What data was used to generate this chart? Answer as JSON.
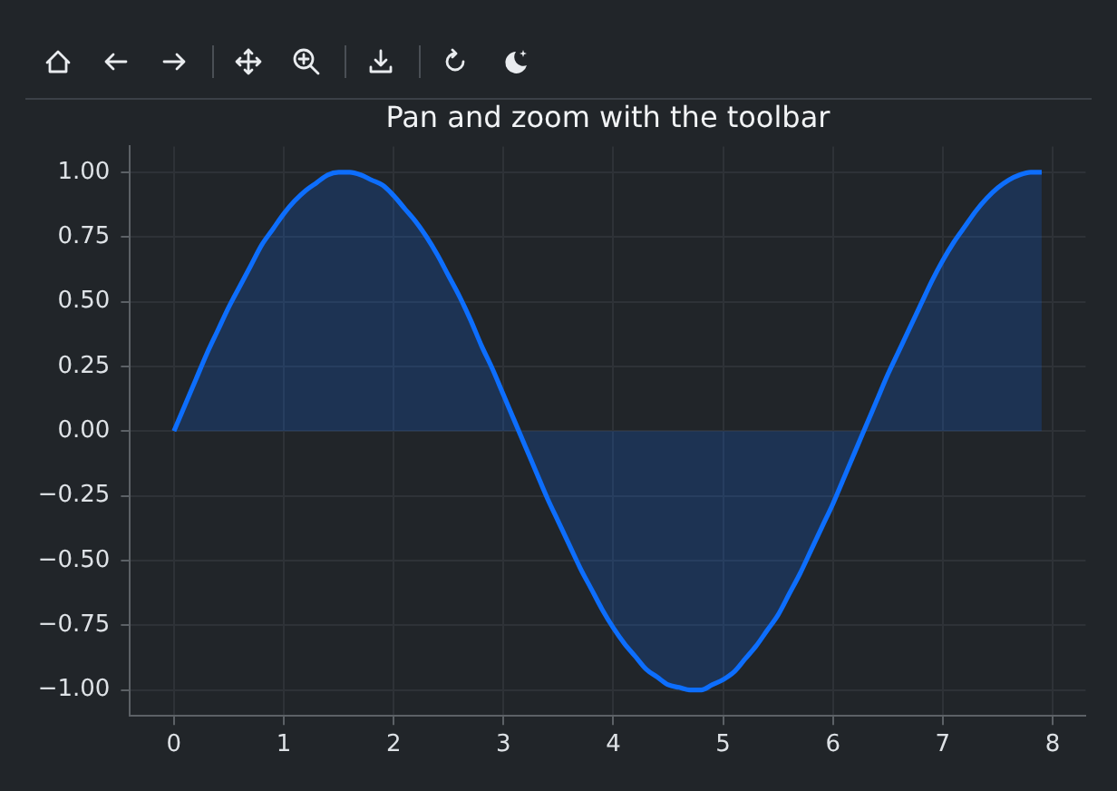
{
  "chart_data": {
    "type": "area",
    "title": "Pan and zoom with the toolbar",
    "color": "#0d6efd",
    "line_style": "solid",
    "grid": true,
    "x": [
      0,
      0.1,
      0.2,
      0.3,
      0.4,
      0.5,
      0.6,
      0.7,
      0.8,
      0.9,
      1,
      1.1,
      1.2,
      1.3,
      1.4,
      1.5,
      1.6,
      1.7,
      1.8,
      1.9,
      2,
      2.1,
      2.2,
      2.3,
      2.4,
      2.5,
      2.6,
      2.7,
      2.8,
      2.9,
      3,
      3.1,
      3.2,
      3.3,
      3.4,
      3.5,
      3.6,
      3.7,
      3.8,
      3.9,
      4,
      4.1,
      4.2,
      4.3,
      4.4,
      4.5,
      4.6,
      4.7,
      4.8,
      4.9,
      5,
      5.1,
      5.2,
      5.3,
      5.4,
      5.5,
      5.6,
      5.7,
      5.8,
      5.9,
      6,
      6.1,
      6.2,
      6.3,
      6.4,
      6.5,
      6.6,
      6.7,
      6.8,
      6.9,
      7,
      7.1,
      7.2,
      7.3,
      7.4,
      7.5,
      7.6,
      7.7,
      7.8,
      7.9
    ],
    "values": [
      0,
      0.1,
      0.2,
      0.3,
      0.39,
      0.48,
      0.56,
      0.64,
      0.72,
      0.78,
      0.84,
      0.89,
      0.93,
      0.96,
      0.99,
      1,
      1,
      0.99,
      0.97,
      0.95,
      0.91,
      0.86,
      0.81,
      0.75,
      0.68,
      0.6,
      0.52,
      0.43,
      0.33,
      0.24,
      0.14,
      0.04,
      -0.06,
      -0.16,
      -0.26,
      -0.35,
      -0.44,
      -0.53,
      -0.61,
      -0.69,
      -0.76,
      -0.82,
      -0.87,
      -0.92,
      -0.95,
      -0.98,
      -0.99,
      -1,
      -1,
      -0.98,
      -0.96,
      -0.93,
      -0.88,
      -0.83,
      -0.77,
      -0.71,
      -0.63,
      -0.55,
      -0.46,
      -0.37,
      -0.28,
      -0.18,
      -0.08,
      0.02,
      0.12,
      0.22,
      0.31,
      0.4,
      0.49,
      0.58,
      0.66,
      0.73,
      0.79,
      0.85,
      0.9,
      0.94,
      0.97,
      0.99,
      1,
      1
    ],
    "xlim": [
      -0.4,
      8.3
    ],
    "ylim": [
      -1.1,
      1.1
    ],
    "xticks": [
      0,
      1,
      2,
      3,
      4,
      5,
      6,
      7,
      8
    ],
    "yticks": [
      {
        "value": -1,
        "label": "−1.00"
      },
      {
        "value": -0.75,
        "label": "−0.75"
      },
      {
        "value": -0.5,
        "label": "−0.50"
      },
      {
        "value": -0.25,
        "label": "−0.25"
      },
      {
        "value": 0,
        "label": "0.00"
      },
      {
        "value": 0.25,
        "label": "0.25"
      },
      {
        "value": 0.5,
        "label": "0.50"
      },
      {
        "value": 0.75,
        "label": "0.75"
      },
      {
        "value": 1,
        "label": "1.00"
      }
    ]
  }
}
